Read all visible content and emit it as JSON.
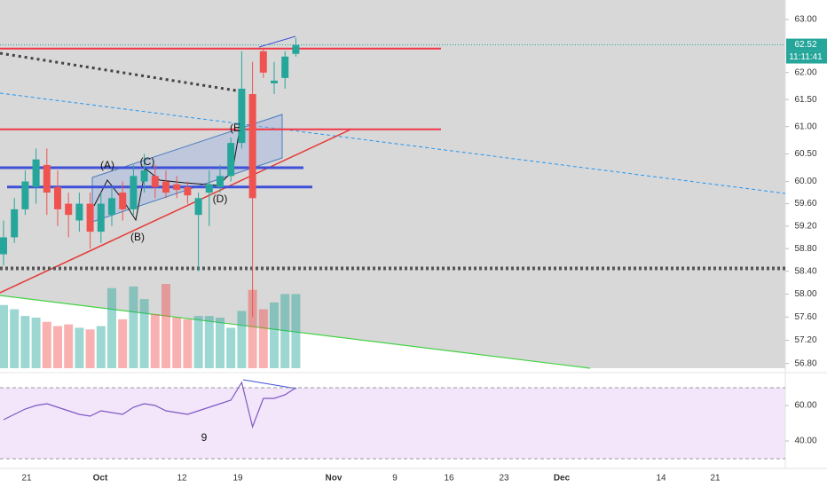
{
  "chart_data": {
    "type": "candlestick",
    "log_scale": true,
    "ylim": [
      56.72,
      63.37
    ],
    "yticks": [
      {
        "value": 63,
        "label": "63.00"
      },
      {
        "value": 62,
        "label": "62.00"
      },
      {
        "value": 61.5,
        "label": "61.50"
      },
      {
        "value": 61,
        "label": "61.00"
      },
      {
        "value": 60.5,
        "label": "60.50"
      },
      {
        "value": 60,
        "label": "60.00"
      },
      {
        "value": 59.6,
        "label": "59.60"
      },
      {
        "value": 59.2,
        "label": "59.20"
      },
      {
        "value": 58.8,
        "label": "58.80"
      },
      {
        "value": 58.4,
        "label": "58.40"
      },
      {
        "value": 58,
        "label": "58.00"
      },
      {
        "value": 57.6,
        "label": "57.60"
      },
      {
        "value": 57.2,
        "label": "57.20"
      },
      {
        "value": 56.8,
        "label": "56.80"
      }
    ],
    "up_color": "#26a69a",
    "down_color": "#ef5350",
    "open": [
      58.7,
      59.0,
      59.5,
      59.9,
      60.3,
      59.9,
      59.6,
      59.3,
      59.6,
      59.1,
      59.4,
      59.8,
      59.5,
      60.0,
      60.1,
      60.0,
      59.95,
      59.9,
      59.4,
      59.8,
      59.9,
      60.1,
      60.7,
      61.6,
      62.4,
      61.8,
      61.9,
      62.35
    ],
    "high": [
      59.3,
      59.7,
      60.2,
      60.6,
      60.6,
      60.2,
      59.8,
      59.8,
      59.8,
      59.8,
      59.9,
      60.0,
      60.3,
      60.5,
      60.3,
      60.2,
      60.1,
      60.0,
      59.8,
      60.2,
      60.3,
      60.8,
      62.4,
      62.2,
      62.45,
      62.2,
      62.4,
      62.65
    ],
    "low": [
      58.5,
      58.9,
      59.4,
      59.6,
      59.4,
      59.2,
      59.0,
      59.1,
      58.8,
      58.9,
      59.2,
      59.3,
      59.4,
      59.8,
      59.7,
      59.7,
      59.7,
      59.6,
      58.4,
      59.2,
      59.8,
      60.0,
      60.6,
      57.6,
      61.9,
      61.6,
      61.7,
      62.3
    ],
    "close": [
      59.0,
      59.5,
      60.0,
      60.4,
      59.8,
      59.5,
      59.4,
      59.6,
      59.1,
      59.6,
      59.7,
      59.5,
      60.1,
      60.2,
      59.9,
      59.8,
      59.85,
      59.75,
      59.7,
      59.95,
      60.1,
      60.7,
      61.7,
      59.7,
      62.0,
      61.85,
      62.3,
      62.52
    ],
    "volume": {
      "values": [
        75,
        70,
        62,
        60,
        55,
        50,
        52,
        48,
        46,
        50,
        95,
        58,
        97,
        82,
        64,
        100,
        60,
        58,
        62,
        62,
        60,
        48,
        68,
        93,
        70,
        78,
        88,
        88
      ]
    },
    "rsi": {
      "values": [
        52,
        55,
        58,
        60,
        61,
        59,
        57,
        55,
        54,
        57,
        56,
        55,
        59,
        61,
        60,
        57,
        56,
        55,
        57,
        59,
        61,
        63,
        73,
        48,
        64,
        64,
        66,
        70
      ],
      "ylim": [
        24.5,
        73.5
      ],
      "yticks": [
        {
          "value": 60,
          "label": "60.00"
        },
        {
          "value": 40,
          "label": "40.00"
        }
      ],
      "bands": [
        30,
        70
      ],
      "color": "#7e57c2"
    },
    "price_lines": [
      {
        "value": 62.45,
        "color": "#f23645"
      },
      {
        "value": 60.95,
        "color": "#f23645"
      },
      {
        "value": 60.25,
        "color": "#3f51d8"
      },
      {
        "value": 59.9,
        "color": "#3f51d8"
      },
      {
        "value": 58.45,
        "color": "#555555"
      }
    ],
    "last_price": 62.52,
    "countdown": "11:11:41",
    "xtick_labels": [
      "21",
      "Oct",
      "12",
      "19",
      "Nov",
      "9",
      "16",
      "23",
      "Dec",
      "14",
      "21"
    ],
    "annotations": [
      "(A)",
      "(B)",
      "(C)",
      "(D)",
      "(E"
    ],
    "rsi_note": "9"
  }
}
